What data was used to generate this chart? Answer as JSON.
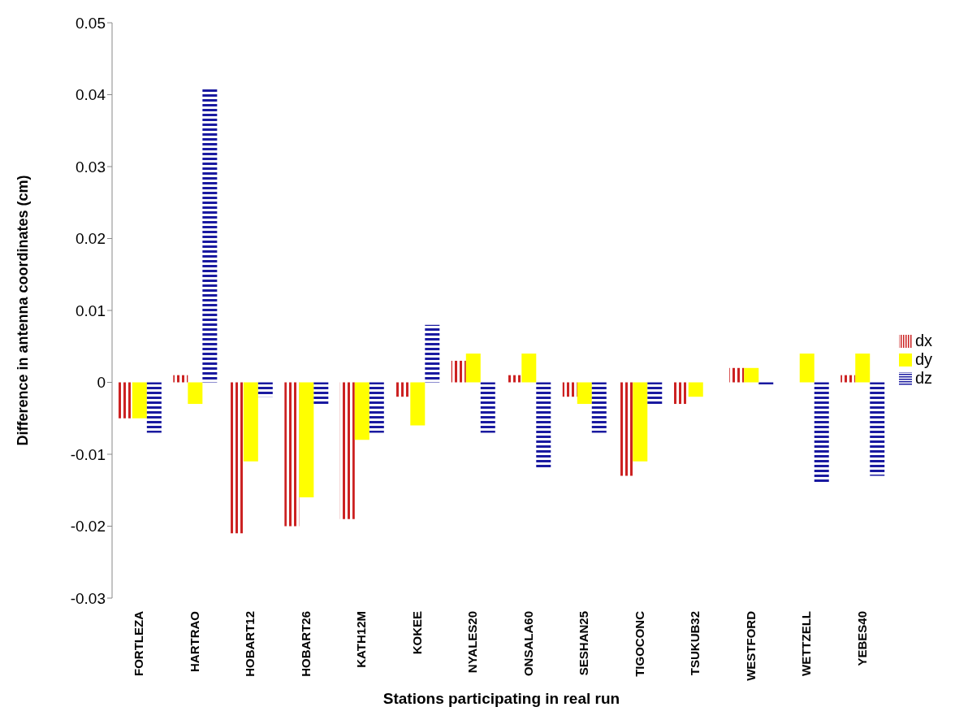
{
  "chart_data": {
    "type": "bar",
    "xlabel": "Stations participating in real run",
    "ylabel": "Difference in antenna coordinates (cm)",
    "categories": [
      "FORTLEZA",
      "HARTRAO",
      "HOBART12",
      "HOBART26",
      "KATH12M",
      "KOKEE",
      "NYALES20",
      "ONSALA60",
      "SESHAN25",
      "TIGOCONC",
      "TSUKUB32",
      "WESTFORD",
      "WETTZELL",
      "YEBES40"
    ],
    "series": [
      {
        "name": "dx",
        "color": "#cc2222",
        "values": [
          -0.005,
          0.001,
          -0.021,
          -0.02,
          -0.019,
          -0.002,
          0.003,
          0.001,
          -0.002,
          -0.013,
          -0.003,
          0.002,
          null,
          0.001
        ]
      },
      {
        "name": "dy",
        "color": "#ffff00",
        "values": [
          -0.005,
          -0.003,
          -0.011,
          -0.016,
          -0.008,
          -0.006,
          0.004,
          0.004,
          -0.003,
          -0.011,
          -0.002,
          0.002,
          0.004,
          0.004
        ]
      },
      {
        "name": "dz",
        "color": "#1a1aa0",
        "values": [
          -0.007,
          0.041,
          -0.002,
          -0.003,
          -0.007,
          0.008,
          -0.007,
          -0.012,
          -0.007,
          -0.003,
          null,
          -0.0005,
          -0.014,
          -0.013
        ]
      }
    ],
    "ylim": [
      -0.03,
      0.05
    ],
    "yticks": [
      -0.03,
      -0.02,
      -0.01,
      0,
      0.01,
      0.02,
      0.03,
      0.04,
      0.05
    ],
    "grid": false,
    "legend": "right"
  }
}
